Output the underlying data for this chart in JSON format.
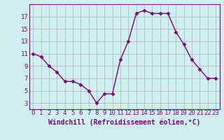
{
  "x": [
    0,
    1,
    2,
    3,
    4,
    5,
    6,
    7,
    8,
    9,
    10,
    11,
    12,
    13,
    14,
    15,
    16,
    17,
    18,
    19,
    20,
    21,
    22,
    23
  ],
  "y": [
    11.0,
    10.5,
    9.0,
    8.0,
    6.5,
    6.5,
    6.0,
    5.0,
    3.0,
    4.5,
    4.5,
    10.0,
    13.0,
    17.5,
    18.0,
    17.5,
    17.5,
    17.5,
    14.5,
    12.5,
    10.0,
    8.5,
    7.0,
    7.0
  ],
  "line_color": "#800080",
  "marker": "D",
  "marker_size": 2.5,
  "line_width": 1.0,
  "bg_color": "#cff0f0",
  "grid_color": "#b0b0b0",
  "xlabel": "Windchill (Refroidissement éolien,°C)",
  "xlabel_fontsize": 7,
  "tick_label_fontsize": 6.5,
  "yticks": [
    3,
    5,
    7,
    9,
    11,
    13,
    15,
    17
  ],
  "xticks": [
    0,
    1,
    2,
    3,
    4,
    5,
    6,
    7,
    8,
    9,
    10,
    11,
    12,
    13,
    14,
    15,
    16,
    17,
    18,
    19,
    20,
    21,
    22,
    23
  ],
  "xlim": [
    -0.5,
    23.5
  ],
  "ylim": [
    2.0,
    19.0
  ]
}
